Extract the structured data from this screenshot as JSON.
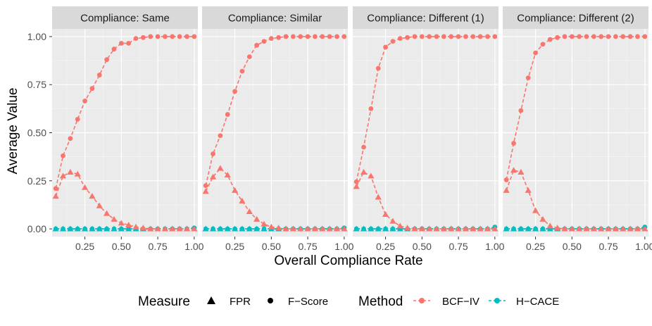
{
  "chart_data": {
    "type": "line",
    "facet_by": "compliance scenario",
    "panels": [
      {
        "title": "Compliance: Same",
        "series": [
          {
            "method": "BCF-IV",
            "measure": "F-Score",
            "x": [
              0.05,
              0.1,
              0.15,
              0.2,
              0.25,
              0.3,
              0.35,
              0.4,
              0.45,
              0.5,
              0.55,
              0.6,
              0.65,
              0.7,
              0.75,
              0.8,
              0.85,
              0.9,
              0.95,
              1.0
            ],
            "y": [
              0.21,
              0.38,
              0.47,
              0.57,
              0.665,
              0.73,
              0.8,
              0.88,
              0.935,
              0.965,
              0.965,
              0.99,
              0.995,
              1.0,
              1.0,
              1.0,
              1.0,
              1.0,
              1.0,
              1.0
            ]
          },
          {
            "method": "BCF-IV",
            "measure": "FPR",
            "x": [
              0.05,
              0.1,
              0.15,
              0.2,
              0.25,
              0.3,
              0.35,
              0.4,
              0.45,
              0.5,
              0.55,
              0.6,
              0.65,
              0.7,
              0.75,
              0.8,
              0.85,
              0.9,
              0.95,
              1.0
            ],
            "y": [
              0.17,
              0.275,
              0.295,
              0.285,
              0.215,
              0.17,
              0.12,
              0.08,
              0.05,
              0.03,
              0.02,
              0.01,
              0.005,
              0.0,
              0.0,
              0.0,
              0.0,
              0.0,
              0.0,
              0.0
            ]
          },
          {
            "method": "H-CACE",
            "measure": "F-Score",
            "x": [
              0.05,
              0.1,
              0.15,
              0.2,
              0.25,
              0.3,
              0.35,
              0.4,
              0.45,
              0.5,
              0.55,
              0.6,
              0.65,
              0.7,
              0.75,
              0.8,
              0.85,
              0.9,
              0.95,
              1.0
            ],
            "y": [
              0,
              0,
              0,
              0,
              0,
              0,
              0,
              0,
              0,
              0,
              0,
              0,
              0,
              0,
              0,
              0,
              0,
              0,
              0,
              0.005
            ]
          },
          {
            "method": "H-CACE",
            "measure": "FPR",
            "x": [
              0.05,
              0.1,
              0.15,
              0.2,
              0.25,
              0.3,
              0.35,
              0.4,
              0.45,
              0.5,
              0.55,
              0.6,
              0.65,
              0.7,
              0.75,
              0.8,
              0.85,
              0.9,
              0.95,
              1.0
            ],
            "y": [
              0,
              0,
              0,
              0,
              0,
              0,
              0,
              0,
              0,
              0,
              0,
              0,
              0,
              0,
              0,
              0,
              0,
              0,
              0,
              0
            ]
          }
        ]
      },
      {
        "title": "Compliance: Similar",
        "series": [
          {
            "method": "BCF-IV",
            "measure": "F-Score",
            "x": [
              0.05,
              0.1,
              0.15,
              0.2,
              0.25,
              0.3,
              0.35,
              0.4,
              0.45,
              0.5,
              0.55,
              0.6,
              0.65,
              0.7,
              0.75,
              0.8,
              0.85,
              0.9,
              0.95,
              1.0
            ],
            "y": [
              0.225,
              0.39,
              0.485,
              0.595,
              0.715,
              0.82,
              0.895,
              0.955,
              0.975,
              0.99,
              0.995,
              1.0,
              1.0,
              1.0,
              1.0,
              1.0,
              1.0,
              1.0,
              1.0,
              1.0
            ]
          },
          {
            "method": "BCF-IV",
            "measure": "FPR",
            "x": [
              0.05,
              0.1,
              0.15,
              0.2,
              0.25,
              0.3,
              0.35,
              0.4,
              0.45,
              0.5,
              0.55,
              0.6,
              0.65,
              0.7,
              0.75,
              0.8,
              0.85,
              0.9,
              0.95,
              1.0
            ],
            "y": [
              0.195,
              0.27,
              0.315,
              0.28,
              0.2,
              0.145,
              0.09,
              0.05,
              0.025,
              0.01,
              0.005,
              0.0,
              0.0,
              0.0,
              0.0,
              0.0,
              0.0,
              0.0,
              0.0,
              0.0
            ]
          },
          {
            "method": "H-CACE",
            "measure": "F-Score",
            "x": [
              0.05,
              0.1,
              0.15,
              0.2,
              0.25,
              0.3,
              0.35,
              0.4,
              0.45,
              0.5,
              0.55,
              0.6,
              0.65,
              0.7,
              0.75,
              0.8,
              0.85,
              0.9,
              0.95,
              1.0
            ],
            "y": [
              0,
              0,
              0,
              0,
              0,
              0,
              0,
              0,
              0,
              0,
              0,
              0,
              0,
              0,
              0,
              0,
              0,
              0,
              0,
              0.005
            ]
          },
          {
            "method": "H-CACE",
            "measure": "FPR",
            "x": [
              0.05,
              0.1,
              0.15,
              0.2,
              0.25,
              0.3,
              0.35,
              0.4,
              0.45,
              0.5,
              0.55,
              0.6,
              0.65,
              0.7,
              0.75,
              0.8,
              0.85,
              0.9,
              0.95,
              1.0
            ],
            "y": [
              0,
              0,
              0,
              0,
              0,
              0,
              0,
              0,
              0,
              0,
              0,
              0,
              0,
              0,
              0,
              0,
              0,
              0,
              0,
              0
            ]
          }
        ]
      },
      {
        "title": "Compliance: Different (1)",
        "series": [
          {
            "method": "BCF-IV",
            "measure": "F-Score",
            "x": [
              0.05,
              0.1,
              0.15,
              0.2,
              0.25,
              0.3,
              0.35,
              0.4,
              0.45,
              0.5,
              0.55,
              0.6,
              0.65,
              0.7,
              0.75,
              0.8,
              0.85,
              0.9,
              0.95,
              1.0
            ],
            "y": [
              0.245,
              0.425,
              0.625,
              0.835,
              0.945,
              0.975,
              0.99,
              0.995,
              1.0,
              1.0,
              1.0,
              1.0,
              1.0,
              1.0,
              1.0,
              1.0,
              1.0,
              1.0,
              1.0,
              1.0
            ]
          },
          {
            "method": "BCF-IV",
            "measure": "FPR",
            "x": [
              0.05,
              0.1,
              0.15,
              0.2,
              0.25,
              0.3,
              0.35,
              0.4,
              0.45,
              0.5,
              0.55,
              0.6,
              0.65,
              0.7,
              0.75,
              0.8,
              0.85,
              0.9,
              0.95,
              1.0
            ],
            "y": [
              0.22,
              0.295,
              0.275,
              0.165,
              0.075,
              0.04,
              0.015,
              0.005,
              0.0,
              0.0,
              0.0,
              0.0,
              0.0,
              0.0,
              0.0,
              0.0,
              0.0,
              0.0,
              0.0,
              0.0
            ]
          },
          {
            "method": "H-CACE",
            "measure": "F-Score",
            "x": [
              0.05,
              0.1,
              0.15,
              0.2,
              0.25,
              0.3,
              0.35,
              0.4,
              0.45,
              0.5,
              0.55,
              0.6,
              0.65,
              0.7,
              0.75,
              0.8,
              0.85,
              0.9,
              0.95,
              1.0
            ],
            "y": [
              0,
              0,
              0,
              0,
              0,
              0,
              0,
              0,
              0,
              0,
              0,
              0,
              0,
              0,
              0,
              0,
              0,
              0,
              0,
              0.01
            ]
          },
          {
            "method": "H-CACE",
            "measure": "FPR",
            "x": [
              0.05,
              0.1,
              0.15,
              0.2,
              0.25,
              0.3,
              0.35,
              0.4,
              0.45,
              0.5,
              0.55,
              0.6,
              0.65,
              0.7,
              0.75,
              0.8,
              0.85,
              0.9,
              0.95,
              1.0
            ],
            "y": [
              0,
              0,
              0,
              0,
              0,
              0,
              0,
              0,
              0,
              0,
              0,
              0,
              0,
              0,
              0,
              0,
              0,
              0,
              0,
              0
            ]
          }
        ]
      },
      {
        "title": "Compliance: Different (2)",
        "series": [
          {
            "method": "BCF-IV",
            "measure": "F-Score",
            "x": [
              0.05,
              0.1,
              0.15,
              0.2,
              0.25,
              0.3,
              0.35,
              0.4,
              0.45,
              0.5,
              0.55,
              0.6,
              0.65,
              0.7,
              0.75,
              0.8,
              0.85,
              0.9,
              0.95,
              1.0
            ],
            "y": [
              0.255,
              0.445,
              0.615,
              0.785,
              0.915,
              0.96,
              0.985,
              0.995,
              1.0,
              1.0,
              1.0,
              1.0,
              1.0,
              1.0,
              1.0,
              1.0,
              1.0,
              1.0,
              1.0,
              1.0
            ]
          },
          {
            "method": "BCF-IV",
            "measure": "FPR",
            "x": [
              0.05,
              0.1,
              0.15,
              0.2,
              0.25,
              0.3,
              0.35,
              0.4,
              0.45,
              0.5,
              0.55,
              0.6,
              0.65,
              0.7,
              0.75,
              0.8,
              0.85,
              0.9,
              0.95,
              1.0
            ],
            "y": [
              0.2,
              0.305,
              0.295,
              0.2,
              0.095,
              0.05,
              0.015,
              0.005,
              0.0,
              0.0,
              0.0,
              0.0,
              0.0,
              0.0,
              0.0,
              0.0,
              0.0,
              0.0,
              0.0,
              0.0
            ]
          },
          {
            "method": "H-CACE",
            "measure": "F-Score",
            "x": [
              0.05,
              0.1,
              0.15,
              0.2,
              0.25,
              0.3,
              0.35,
              0.4,
              0.45,
              0.5,
              0.55,
              0.6,
              0.65,
              0.7,
              0.75,
              0.8,
              0.85,
              0.9,
              0.95,
              1.0
            ],
            "y": [
              0,
              0,
              0,
              0,
              0,
              0,
              0,
              0,
              0,
              0,
              0,
              0,
              0,
              0,
              0,
              0,
              0,
              0,
              0,
              0.01
            ]
          },
          {
            "method": "H-CACE",
            "measure": "FPR",
            "x": [
              0.05,
              0.1,
              0.15,
              0.2,
              0.25,
              0.3,
              0.35,
              0.4,
              0.45,
              0.5,
              0.55,
              0.6,
              0.65,
              0.7,
              0.75,
              0.8,
              0.85,
              0.9,
              0.95,
              1.0
            ],
            "y": [
              0,
              0,
              0,
              0,
              0,
              0,
              0,
              0,
              0,
              0,
              0,
              0,
              0,
              0,
              0,
              0,
              0,
              0,
              0,
              0
            ]
          }
        ]
      }
    ],
    "xlabel": "Overall Compliance Rate",
    "ylabel": "Average Value",
    "xlim": [
      0.025,
      1.025
    ],
    "ylim": [
      -0.04,
      1.04
    ],
    "x_ticks": [
      0.25,
      0.5,
      0.75,
      1.0
    ],
    "x_tick_labels": [
      "0.25",
      "0.50",
      "0.75",
      "1.00"
    ],
    "y_ticks": [
      0,
      0.25,
      0.5,
      0.75,
      1.0
    ],
    "y_tick_labels": [
      "0.00",
      "0.25",
      "0.50",
      "0.75",
      "1.00"
    ],
    "grid": true,
    "legend": {
      "placement": "bottom",
      "measure_title": "Measure",
      "measure_items": [
        {
          "label": "FPR",
          "shape": "triangle"
        },
        {
          "label": "F−Score",
          "shape": "circle"
        }
      ],
      "method_title": "Method",
      "method_items": [
        {
          "label": "BCF−IV",
          "color": "#F8766D"
        },
        {
          "label": "H−CACE",
          "color": "#00BFC4"
        }
      ]
    },
    "colors": {
      "BCF-IV": "#F8766D",
      "H-CACE": "#00BFC4",
      "panel_bg": "#EBEBEB",
      "strip_bg": "#D9D9D9",
      "grid": "#FFFFFF"
    }
  }
}
